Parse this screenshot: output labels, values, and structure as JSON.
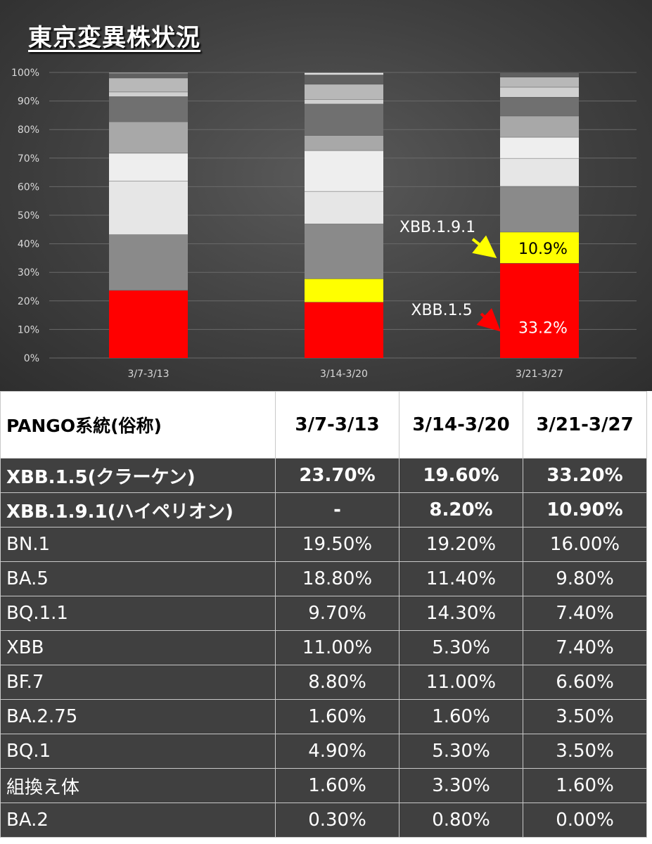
{
  "title": "東京変異株状況",
  "chart_data": {
    "type": "bar",
    "stacked": true,
    "normalized": true,
    "title": "東京変異株状況",
    "categories": [
      "3/7-3/13",
      "3/14-3/20",
      "3/21-3/27"
    ],
    "y_ticks": [
      "0%",
      "10%",
      "20%",
      "30%",
      "40%",
      "50%",
      "60%",
      "70%",
      "80%",
      "90%",
      "100%"
    ],
    "ylim": [
      0,
      100
    ],
    "grid": true,
    "series": [
      {
        "color": "#ff0000",
        "values": [
          23.7,
          19.6,
          33.2
        ]
      },
      {
        "color": "#ffff00",
        "values": [
          0,
          8.2,
          10.9
        ]
      },
      {
        "color": "#8a8a8a",
        "values": [
          19.5,
          19.2,
          16.0
        ]
      },
      {
        "color": "#e6e6e6",
        "values": [
          18.8,
          11.4,
          9.8
        ]
      },
      {
        "color": "#eeeeee",
        "values": [
          9.7,
          14.3,
          7.4
        ]
      },
      {
        "color": "#a8a8a8",
        "values": [
          11.0,
          5.3,
          7.4
        ]
      },
      {
        "color": "#707070",
        "values": [
          8.8,
          11.0,
          6.6
        ]
      },
      {
        "color": "#d0d0d0",
        "values": [
          1.6,
          1.6,
          3.5
        ]
      },
      {
        "color": "#b8b8b8",
        "values": [
          4.9,
          5.3,
          3.5
        ]
      },
      {
        "color": "#606060",
        "values": [
          1.6,
          3.3,
          1.6
        ]
      },
      {
        "color": "#dcdcdc",
        "values": [
          0.3,
          0.8,
          0.0
        ]
      }
    ],
    "annotations": [
      {
        "label": "XBB.1.9.1",
        "value_label": "10.9%",
        "category": "3/21-3/27",
        "arrow_color": "#ffff00"
      },
      {
        "label": "XBB.1.5",
        "value_label": "33.2%",
        "category": "3/21-3/27",
        "arrow_color": "#ff0000"
      }
    ]
  },
  "table": {
    "headers": [
      "PANGO系統(俗称)",
      "3/7-3/13",
      "3/14-3/20",
      "3/21-3/27"
    ],
    "rows": [
      {
        "name": "XBB.1.5(クラーケン)",
        "values": [
          "23.70%",
          "19.60%",
          "33.20%"
        ],
        "style": "red"
      },
      {
        "name": "XBB.1.9.1(ハイペリオン)",
        "values": [
          "-",
          "8.20%",
          "10.90%"
        ],
        "style": "yellow"
      },
      {
        "name": "BN.1",
        "values": [
          "19.50%",
          "19.20%",
          "16.00%"
        ],
        "style": ""
      },
      {
        "name": "BA.5",
        "values": [
          "18.80%",
          "11.40%",
          "9.80%"
        ],
        "style": ""
      },
      {
        "name": "BQ.1.1",
        "values": [
          "9.70%",
          "14.30%",
          "7.40%"
        ],
        "style": ""
      },
      {
        "name": "XBB",
        "values": [
          "11.00%",
          "5.30%",
          "7.40%"
        ],
        "style": ""
      },
      {
        "name": "BF.7",
        "values": [
          "8.80%",
          "11.00%",
          "6.60%"
        ],
        "style": ""
      },
      {
        "name": "BA.2.75",
        "values": [
          "1.60%",
          "1.60%",
          "3.50%"
        ],
        "style": ""
      },
      {
        "name": "BQ.1",
        "values": [
          "4.90%",
          "5.30%",
          "3.50%"
        ],
        "style": ""
      },
      {
        "name": "組換え体",
        "values": [
          "1.60%",
          "3.30%",
          "1.60%"
        ],
        "style": ""
      },
      {
        "name": "BA.2",
        "values": [
          "0.30%",
          "0.80%",
          "0.00%"
        ],
        "style": ""
      }
    ]
  }
}
